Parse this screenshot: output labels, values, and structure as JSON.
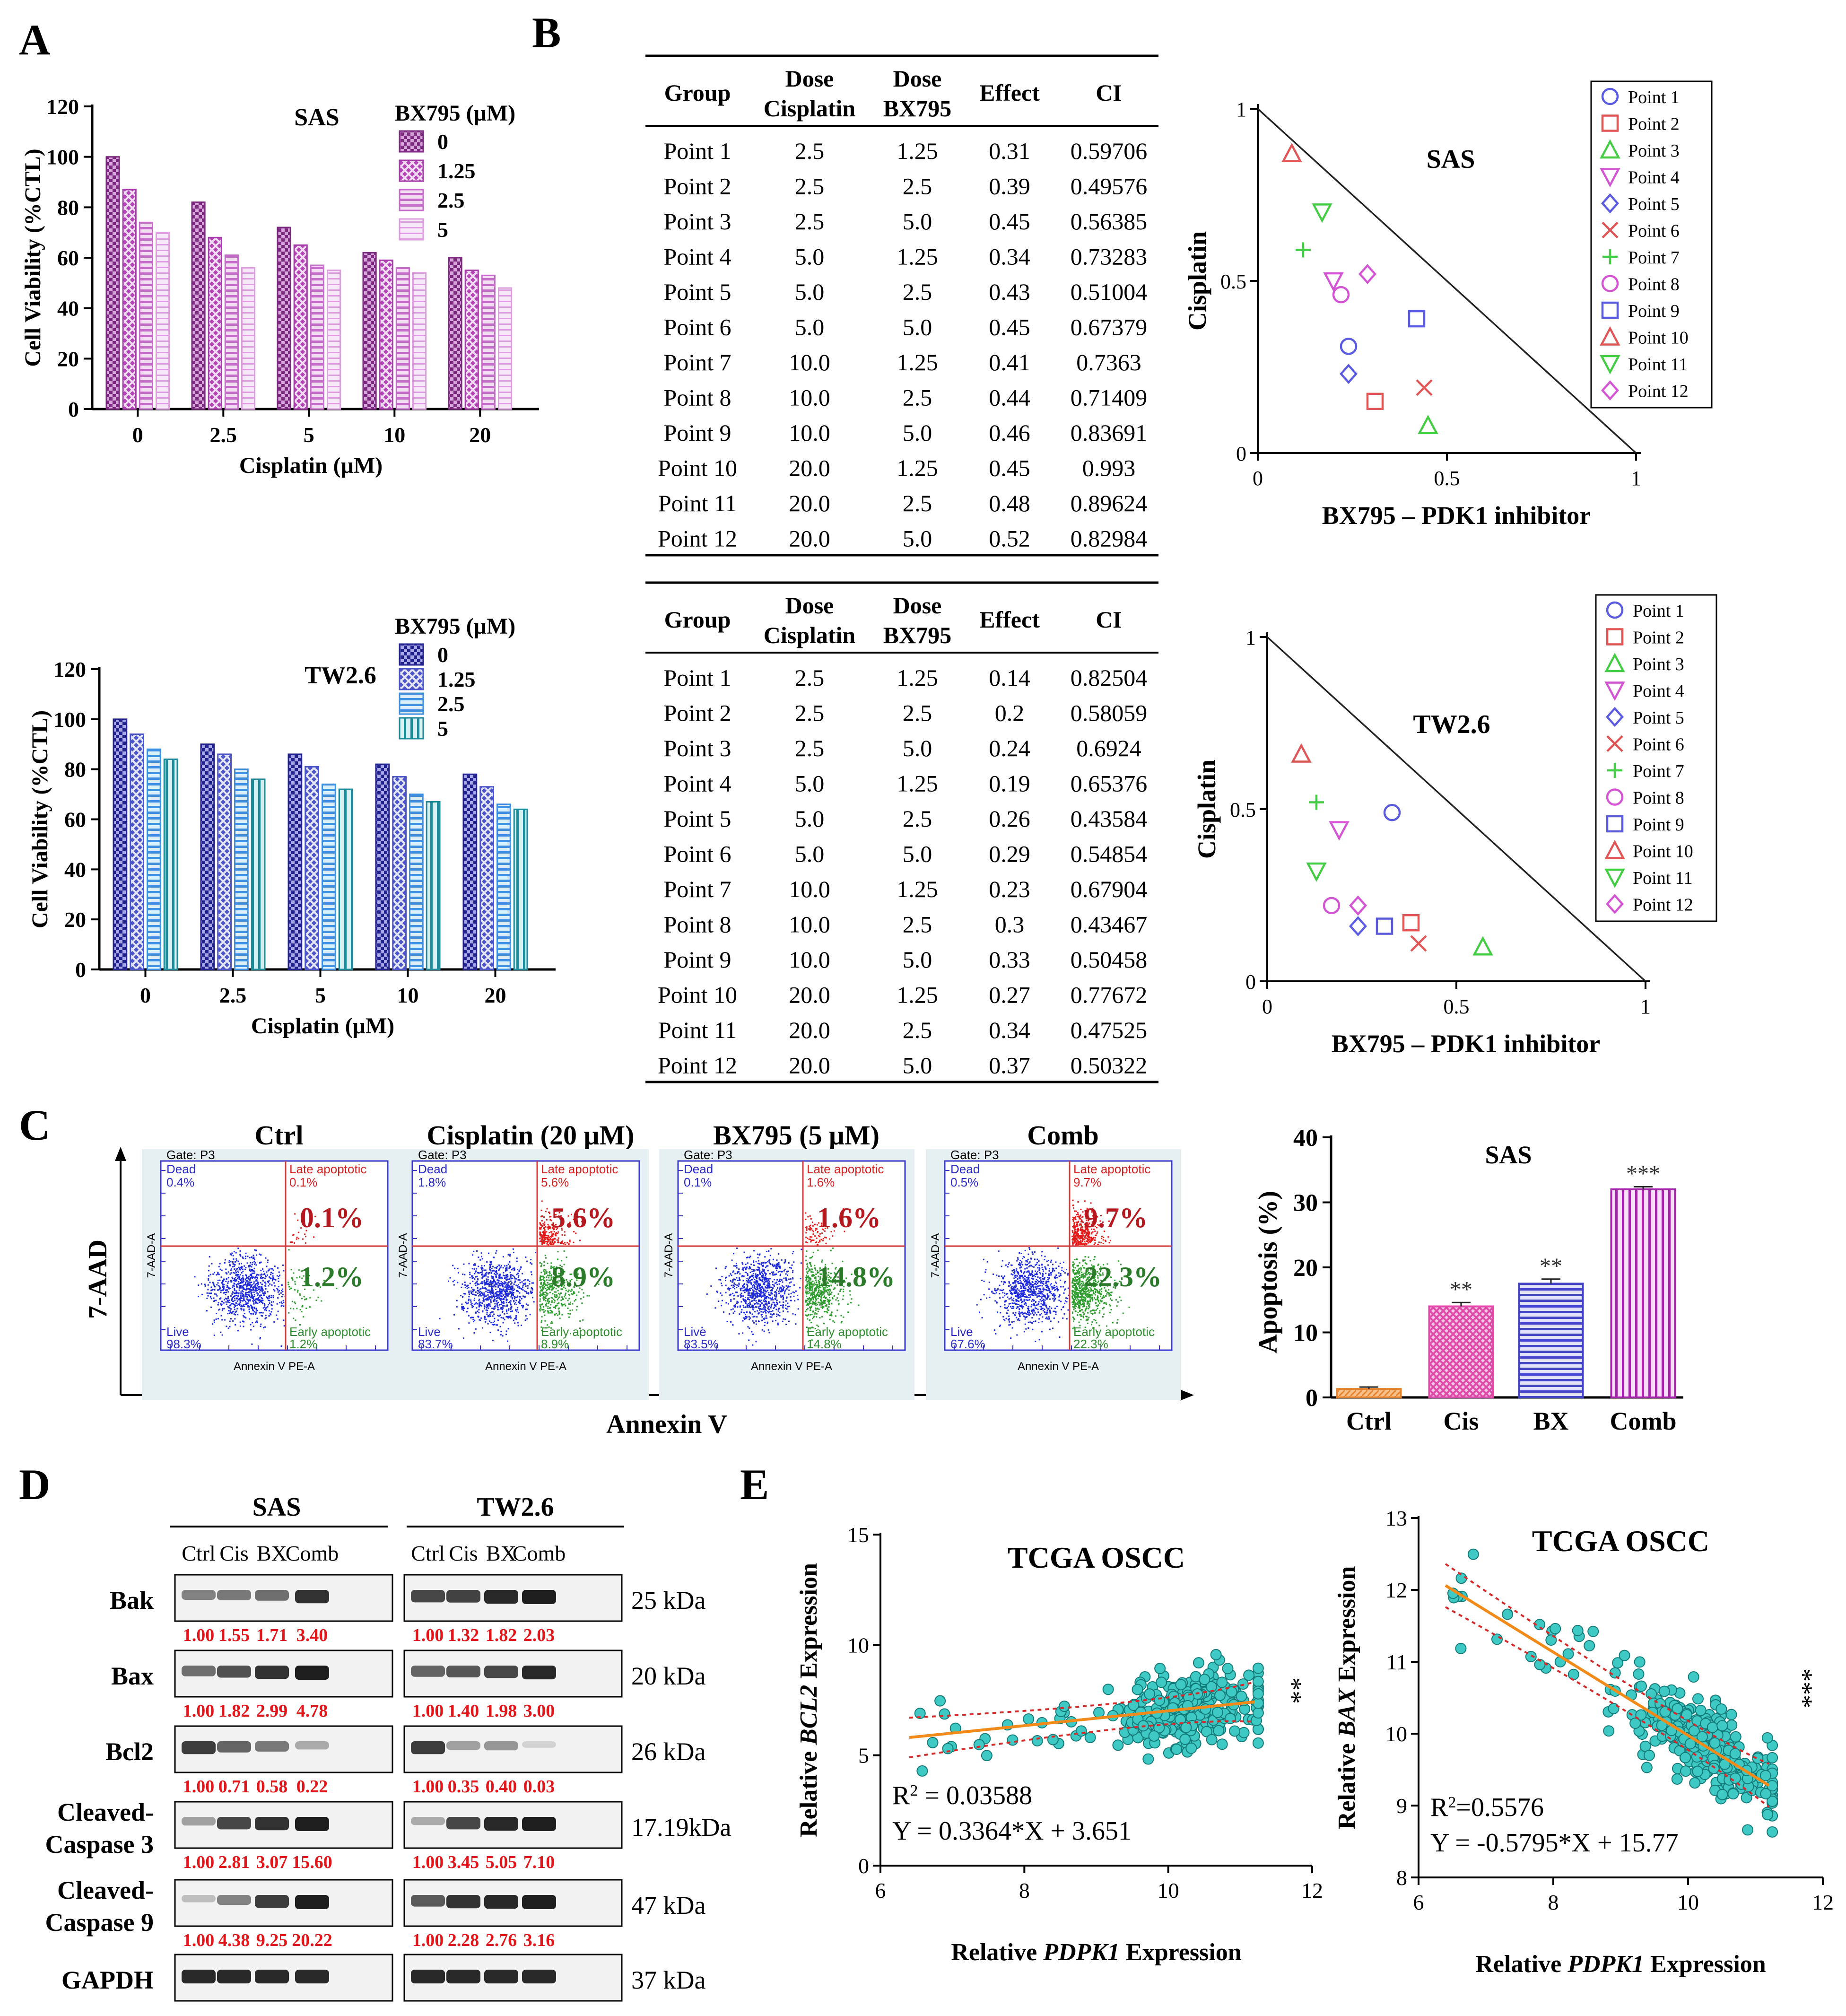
{
  "panel_letters": [
    "A",
    "B",
    "C",
    "D",
    "E"
  ],
  "chart_data": [
    {
      "id": "A_SAS",
      "type": "bar",
      "title": "SAS",
      "xlabel": "Cisplatin (μM)",
      "ylabel": "Cell Viability (%CTL)",
      "ylim": [
        0,
        120
      ],
      "yticks": [
        "0",
        "20",
        "40",
        "60",
        "80",
        "100",
        "120"
      ],
      "categories": [
        "0",
        "2.5",
        "5",
        "10",
        "20"
      ],
      "legend_title": "BX795 (μM)",
      "series": [
        {
          "name": "0",
          "values": [
            100,
            82,
            72,
            62,
            60
          ],
          "color": "#7B2A7F"
        },
        {
          "name": "1.25",
          "values": [
            87,
            68,
            65,
            59,
            55
          ],
          "color": "#A43DA8"
        },
        {
          "name": "2.5",
          "values": [
            74,
            61,
            57,
            56,
            53
          ],
          "color": "#C56BC9"
        },
        {
          "name": "5",
          "values": [
            70,
            56,
            55,
            54,
            48
          ],
          "color": "#DD9CE0"
        }
      ]
    },
    {
      "id": "A_TW",
      "type": "bar",
      "title": "TW2.6",
      "xlabel": "Cisplatin (μM)",
      "ylabel": "Cell Viability (%CTL)",
      "ylim": [
        0,
        120
      ],
      "yticks": [
        "0",
        "20",
        "40",
        "60",
        "80",
        "100",
        "120"
      ],
      "categories": [
        "0",
        "2.5",
        "5",
        "10",
        "20"
      ],
      "legend_title": "BX795 (μM)",
      "series": [
        {
          "name": "0",
          "values": [
            100,
            90,
            86,
            82,
            78
          ],
          "color": "#23238F"
        },
        {
          "name": "1.25",
          "values": [
            94,
            86,
            81,
            77,
            73
          ],
          "color": "#4C55C8"
        },
        {
          "name": "2.5",
          "values": [
            88,
            80,
            74,
            70,
            66
          ],
          "color": "#3F8FE0"
        },
        {
          "name": "5",
          "values": [
            84,
            76,
            72,
            67,
            64
          ],
          "color": "#1F8A9A"
        }
      ]
    },
    {
      "id": "B_SAS_table",
      "type": "table",
      "headers": [
        [
          "Group",
          ""
        ],
        [
          "Dose",
          "Cisplatin"
        ],
        [
          "Dose",
          "BX795"
        ],
        [
          "Effect",
          ""
        ],
        [
          "CI",
          ""
        ]
      ],
      "rows": [
        [
          "Point 1",
          "2.5",
          "1.25",
          "0.31",
          "0.59706"
        ],
        [
          "Point 2",
          "2.5",
          "2.5",
          "0.39",
          "0.49576"
        ],
        [
          "Point 3",
          "2.5",
          "5.0",
          "0.45",
          "0.56385"
        ],
        [
          "Point 4",
          "5.0",
          "1.25",
          "0.34",
          "0.73283"
        ],
        [
          "Point 5",
          "5.0",
          "2.5",
          "0.43",
          "0.51004"
        ],
        [
          "Point 6",
          "5.0",
          "5.0",
          "0.45",
          "0.67379"
        ],
        [
          "Point 7",
          "10.0",
          "1.25",
          "0.41",
          "0.7363"
        ],
        [
          "Point 8",
          "10.0",
          "2.5",
          "0.44",
          "0.71409"
        ],
        [
          "Point 9",
          "10.0",
          "5.0",
          "0.46",
          "0.83691"
        ],
        [
          "Point 10",
          "20.0",
          "1.25",
          "0.45",
          "0.993"
        ],
        [
          "Point 11",
          "20.0",
          "2.5",
          "0.48",
          "0.89624"
        ],
        [
          "Point 12",
          "20.0",
          "5.0",
          "0.52",
          "0.82984"
        ]
      ]
    },
    {
      "id": "B_TW_table",
      "type": "table",
      "headers": [
        [
          "Group",
          ""
        ],
        [
          "Dose",
          "Cisplatin"
        ],
        [
          "Dose",
          "BX795"
        ],
        [
          "Effect",
          ""
        ],
        [
          "CI",
          ""
        ]
      ],
      "rows": [
        [
          "Point 1",
          "2.5",
          "1.25",
          "0.14",
          "0.82504"
        ],
        [
          "Point 2",
          "2.5",
          "2.5",
          "0.2",
          "0.58059"
        ],
        [
          "Point 3",
          "2.5",
          "5.0",
          "0.24",
          "0.6924"
        ],
        [
          "Point 4",
          "5.0",
          "1.25",
          "0.19",
          "0.65376"
        ],
        [
          "Point 5",
          "5.0",
          "2.5",
          "0.26",
          "0.43584"
        ],
        [
          "Point 6",
          "5.0",
          "5.0",
          "0.29",
          "0.54854"
        ],
        [
          "Point 7",
          "10.0",
          "1.25",
          "0.23",
          "0.67904"
        ],
        [
          "Point 8",
          "10.0",
          "2.5",
          "0.3",
          "0.43467"
        ],
        [
          "Point 9",
          "10.0",
          "5.0",
          "0.33",
          "0.50458"
        ],
        [
          "Point 10",
          "20.0",
          "1.25",
          "0.27",
          "0.77672"
        ],
        [
          "Point 11",
          "20.0",
          "2.5",
          "0.34",
          "0.47525"
        ],
        [
          "Point 12",
          "20.0",
          "5.0",
          "0.37",
          "0.50322"
        ]
      ]
    },
    {
      "id": "B_SAS_iso",
      "type": "scatter",
      "title": "SAS",
      "xlabel": "BX795 – PDK1 inhibitor",
      "ylabel": "Cisplatin",
      "xlim": [
        0,
        1
      ],
      "ylim": [
        0,
        1
      ],
      "xticks": [
        "0",
        "0.5",
        "1"
      ],
      "yticks": [
        "0",
        "0.5",
        "1"
      ],
      "points": [
        {
          "name": "Point 1",
          "x": 0.24,
          "y": 0.31,
          "marker": "circle",
          "color": "#5B5BE0"
        },
        {
          "name": "Point 2",
          "x": 0.31,
          "y": 0.15,
          "marker": "square",
          "color": "#E05555"
        },
        {
          "name": "Point 3",
          "x": 0.45,
          "y": 0.08,
          "marker": "triangle",
          "color": "#44CC44"
        },
        {
          "name": "Point 4",
          "x": 0.2,
          "y": 0.5,
          "marker": "triangle-down",
          "color": "#D455D4"
        },
        {
          "name": "Point 5",
          "x": 0.24,
          "y": 0.23,
          "marker": "diamond",
          "color": "#5B5BE0"
        },
        {
          "name": "Point 6",
          "x": 0.44,
          "y": 0.19,
          "marker": "x",
          "color": "#E05555"
        },
        {
          "name": "Point 7",
          "x": 0.12,
          "y": 0.59,
          "marker": "plus",
          "color": "#44CC44"
        },
        {
          "name": "Point 8",
          "x": 0.22,
          "y": 0.46,
          "marker": "circle",
          "color": "#D455D4"
        },
        {
          "name": "Point 9",
          "x": 0.42,
          "y": 0.39,
          "marker": "square",
          "color": "#5B5BE0"
        },
        {
          "name": "Point 10",
          "x": 0.09,
          "y": 0.87,
          "marker": "triangle",
          "color": "#E05555"
        },
        {
          "name": "Point 11",
          "x": 0.17,
          "y": 0.7,
          "marker": "triangle-down",
          "color": "#44CC44"
        },
        {
          "name": "Point 12",
          "x": 0.29,
          "y": 0.52,
          "marker": "diamond",
          "color": "#D455D4"
        }
      ]
    },
    {
      "id": "B_TW_iso",
      "type": "scatter",
      "title": "TW2.6",
      "xlabel": "BX795 – PDK1 inhibitor",
      "ylabel": "Cisplatin",
      "xlim": [
        0,
        1
      ],
      "ylim": [
        0,
        1
      ],
      "xticks": [
        "0",
        "0.5",
        "1"
      ],
      "yticks": [
        "0",
        "0.5",
        "1"
      ],
      "points": [
        {
          "name": "Point 1",
          "x": 0.33,
          "y": 0.49,
          "marker": "circle",
          "color": "#5B5BE0"
        },
        {
          "name": "Point 2",
          "x": 0.38,
          "y": 0.17,
          "marker": "square",
          "color": "#E05555"
        },
        {
          "name": "Point 3",
          "x": 0.57,
          "y": 0.1,
          "marker": "triangle",
          "color": "#44CC44"
        },
        {
          "name": "Point 4",
          "x": 0.19,
          "y": 0.44,
          "marker": "triangle-down",
          "color": "#D455D4"
        },
        {
          "name": "Point 5",
          "x": 0.24,
          "y": 0.16,
          "marker": "diamond",
          "color": "#5B5BE0"
        },
        {
          "name": "Point 6",
          "x": 0.4,
          "y": 0.11,
          "marker": "x",
          "color": "#E05555"
        },
        {
          "name": "Point 7",
          "x": 0.13,
          "y": 0.52,
          "marker": "plus",
          "color": "#44CC44"
        },
        {
          "name": "Point 8",
          "x": 0.17,
          "y": 0.22,
          "marker": "circle",
          "color": "#D455D4"
        },
        {
          "name": "Point 9",
          "x": 0.31,
          "y": 0.16,
          "marker": "square",
          "color": "#5B5BE0"
        },
        {
          "name": "Point 10",
          "x": 0.09,
          "y": 0.66,
          "marker": "triangle",
          "color": "#E05555"
        },
        {
          "name": "Point 11",
          "x": 0.13,
          "y": 0.32,
          "marker": "triangle-down",
          "color": "#44CC44"
        },
        {
          "name": "Point 12",
          "x": 0.24,
          "y": 0.22,
          "marker": "diamond",
          "color": "#D455D4"
        }
      ]
    },
    {
      "id": "C_flow",
      "type": "scatter",
      "xlabel": "Annexin V",
      "ylabel": "7-AAD",
      "panel_xlabel": "Annexin V PE-A",
      "panel_ylabel": "7-AAD-A",
      "gate": "Gate: P3",
      "quadrant_labels": {
        "dead": "Dead",
        "late": "Late apoptotic",
        "early": "Early apoptotic",
        "live": "Live"
      },
      "panels": [
        {
          "title": "Ctrl",
          "dead": "0.4%",
          "late_small": "0.1%",
          "early_small": "1.2%",
          "live": "98.3%",
          "late_big": "0.1%",
          "early_big": "1.2%",
          "late_n": 20,
          "early_n": 60
        },
        {
          "title": "Cisplatin (20 μM)",
          "dead": "1.8%",
          "late_small": "5.6%",
          "early_small": "8.9%",
          "live": "83.7%",
          "late_big": "5.6%",
          "early_big": "8.9%",
          "late_n": 230,
          "early_n": 380
        },
        {
          "title": "BX795 (5 μM)",
          "dead": "0.1%",
          "late_small": "1.6%",
          "early_small": "14.8%",
          "live": "83.5%",
          "late_big": "1.6%",
          "early_big": "14.8%",
          "late_n": 80,
          "early_n": 520
        },
        {
          "title": "Comb",
          "dead": "0.5%",
          "late_small": "9.7%",
          "early_small": "22.3%",
          "live": "67.6%",
          "late_big": "9.7%",
          "early_big": "22.3%",
          "late_n": 380,
          "early_n": 700
        }
      ]
    },
    {
      "id": "C_apoptosis",
      "type": "bar",
      "title": "SAS",
      "ylabel": "Apoptosis (%)",
      "ylim": [
        0,
        40
      ],
      "yticks": [
        "0",
        "10",
        "20",
        "30",
        "40"
      ],
      "categories": [
        "Ctrl",
        "Cis",
        "BX",
        "Comb"
      ],
      "values": [
        1.3,
        14.0,
        17.5,
        32.0
      ],
      "errors": [
        0.3,
        0.6,
        0.7,
        0.4
      ],
      "significance": [
        "",
        "**",
        "**",
        "***"
      ],
      "colors": [
        "#E8822A",
        "#E04AA8",
        "#4545C8",
        "#A326A8"
      ]
    },
    {
      "id": "D_western",
      "type": "table",
      "cell_lines": [
        "SAS",
        "TW2.6"
      ],
      "lanes": [
        "Ctrl",
        "Cis",
        "BX",
        "Comb"
      ],
      "rows": [
        {
          "label": [
            "Bak"
          ],
          "size": "25 kDa",
          "sas": [
            "1.00",
            "1.55",
            "1.71",
            "3.40"
          ],
          "tw": [
            "1.00",
            "1.32",
            "1.82",
            "2.03"
          ],
          "sas_i": [
            0.5,
            0.55,
            0.6,
            0.9
          ],
          "tw_i": [
            0.8,
            0.82,
            0.95,
            1.0
          ]
        },
        {
          "label": [
            "Bax"
          ],
          "size": "20 kDa",
          "sas": [
            "1.00",
            "1.82",
            "2.99",
            "4.78"
          ],
          "tw": [
            "1.00",
            "1.40",
            "1.98",
            "3.00"
          ],
          "sas_i": [
            0.6,
            0.75,
            0.9,
            1.0
          ],
          "tw_i": [
            0.65,
            0.72,
            0.8,
            0.95
          ]
        },
        {
          "label": [
            "Bcl2"
          ],
          "size": "26 kDa",
          "sas": [
            "1.00",
            "0.71",
            "0.58",
            "0.22"
          ],
          "tw": [
            "1.00",
            "0.35",
            "0.40",
            "0.03"
          ],
          "sas_i": [
            0.85,
            0.65,
            0.55,
            0.3
          ],
          "tw_i": [
            0.85,
            0.35,
            0.4,
            0.1
          ]
        },
        {
          "label": [
            "Cleaved-",
            "Caspase 3"
          ],
          "size": "17.19kDa",
          "sas": [
            "1.00",
            "2.81",
            "3.07",
            "15.60"
          ],
          "tw": [
            "1.00",
            "3.45",
            "5.05",
            "7.10"
          ],
          "sas_i": [
            0.35,
            0.8,
            0.9,
            1.0
          ],
          "tw_i": [
            0.3,
            0.8,
            0.95,
            1.0
          ]
        },
        {
          "label": [
            "Cleaved-",
            "Caspase 9"
          ],
          "size": "47 kDa",
          "sas": [
            "1.00",
            "4.38",
            "9.25",
            "20.22"
          ],
          "tw": [
            "1.00",
            "2.28",
            "2.76",
            "3.16"
          ],
          "sas_i": [
            0.2,
            0.5,
            0.85,
            1.0
          ],
          "tw_i": [
            0.7,
            0.9,
            0.95,
            1.0
          ]
        },
        {
          "label": [
            "GAPDH"
          ],
          "size": "37 kDa",
          "sas": null,
          "tw": null,
          "sas_i": [
            0.95,
            0.95,
            0.95,
            0.95
          ],
          "tw_i": [
            0.95,
            0.95,
            0.95,
            0.95
          ]
        }
      ]
    },
    {
      "id": "E_BCL2",
      "type": "scatter",
      "title": "TCGA OSCC",
      "xlabel_pre": "Relative ",
      "xlabel_it": "PDPK1",
      "xlabel_post": " Expression",
      "ylabel_pre": "Relative ",
      "ylabel_it": "BCL2",
      "ylabel_post": " Expression",
      "xlim": [
        6,
        12
      ],
      "ylim": [
        0,
        15
      ],
      "xticks": [
        "6",
        "8",
        "10",
        "12"
      ],
      "yticks": [
        "0",
        "5",
        "10",
        "15"
      ],
      "r2_label": "R",
      "r2_value": " = 0.03588",
      "equation": "Y = 0.3364*X + 3.651",
      "fit": {
        "slope": 0.3364,
        "intercept": 3.651,
        "x0": 6.4,
        "x1": 11.2
      },
      "significance": "**",
      "n_points": 320,
      "seed": 11
    },
    {
      "id": "E_BAX",
      "type": "scatter",
      "title": "TCGA OSCC",
      "xlabel_pre": "Relative ",
      "xlabel_it": "PDPK1",
      "xlabel_post": " Expression",
      "ylabel_pre": "Relative ",
      "ylabel_it": "BAX",
      "ylabel_post": " Expression",
      "xlim": [
        6,
        12
      ],
      "ylim": [
        8,
        13
      ],
      "xticks": [
        "6",
        "8",
        "10",
        "12"
      ],
      "yticks": [
        "8",
        "9",
        "10",
        "11",
        "12",
        "13"
      ],
      "r2_label": "R",
      "r2_value": "=0.5576",
      "equation": "Y = -0.5795*X + 15.77",
      "fit": {
        "slope": -0.5795,
        "intercept": 15.77,
        "x0": 6.4,
        "x1": 11.2
      },
      "significance": "***",
      "n_points": 320,
      "seed": 23
    }
  ]
}
